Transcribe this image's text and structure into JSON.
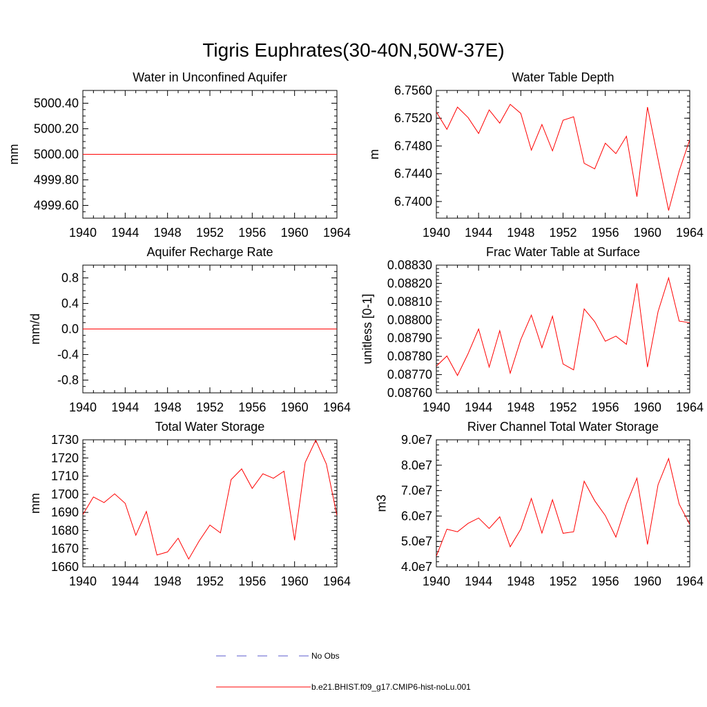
{
  "figure": {
    "title": "Tigris Euphrates(30-40N,50W-37E)"
  },
  "legend": {
    "entries": [
      {
        "label": "No Obs",
        "style": "dashed",
        "color": "#5a5acd"
      },
      {
        "label": "b.e21.BHIST.f09_g17.CMIP6-hist-noLu.001",
        "style": "solid",
        "color": "#ff0000"
      }
    ]
  },
  "chart_data": [
    {
      "type": "line",
      "title": "Water in Unconfined Aquifer",
      "xlabel": "",
      "ylabel": "mm",
      "xlim": [
        1940,
        1964
      ],
      "ylim": [
        4999.5,
        5000.5
      ],
      "xticks": [
        "1940",
        "1944",
        "1948",
        "1952",
        "1956",
        "1960",
        "1964"
      ],
      "yticks": [
        {
          "v": 5000.4,
          "label": "5000.40"
        },
        {
          "v": 5000.2,
          "label": "5000.20"
        },
        {
          "v": 5000.0,
          "label": "5000.00"
        },
        {
          "v": 4999.8,
          "label": "4999.80"
        },
        {
          "v": 4999.6,
          "label": "4999.60"
        }
      ],
      "yminor": 0.05,
      "series": [
        {
          "color": "#ff0000",
          "x": [
            1940,
            1941,
            1942,
            1943,
            1944,
            1945,
            1946,
            1947,
            1948,
            1949,
            1950,
            1951,
            1952,
            1953,
            1954,
            1955,
            1956,
            1957,
            1958,
            1959,
            1960,
            1961,
            1962,
            1963,
            1964
          ],
          "values": [
            5000,
            5000,
            5000,
            5000,
            5000,
            5000,
            5000,
            5000,
            5000,
            5000,
            5000,
            5000,
            5000,
            5000,
            5000,
            5000,
            5000,
            5000,
            5000,
            5000,
            5000,
            5000,
            5000,
            5000,
            5000
          ]
        }
      ]
    },
    {
      "type": "line",
      "title": "Water Table Depth",
      "xlabel": "",
      "ylabel": "m",
      "xlim": [
        1940,
        1964
      ],
      "ylim": [
        6.7376,
        6.756
      ],
      "xticks": [
        "1940",
        "1944",
        "1948",
        "1952",
        "1956",
        "1960",
        "1964"
      ],
      "yticks": [
        {
          "v": 6.756,
          "label": "6.7560"
        },
        {
          "v": 6.752,
          "label": "6.7520"
        },
        {
          "v": 6.748,
          "label": "6.7480"
        },
        {
          "v": 6.744,
          "label": "6.7440"
        },
        {
          "v": 6.74,
          "label": "6.7400"
        }
      ],
      "yminor": 0.0008,
      "series": [
        {
          "color": "#ff0000",
          "x": [
            1940,
            1941,
            1942,
            1943,
            1944,
            1945,
            1946,
            1947,
            1948,
            1949,
            1950,
            1951,
            1952,
            1953,
            1954,
            1955,
            1956,
            1957,
            1958,
            1959,
            1960,
            1961,
            1962,
            1963,
            1964
          ],
          "values": [
            6.7529,
            6.7504,
            6.7536,
            6.7521,
            6.7498,
            6.7532,
            6.7513,
            6.754,
            6.7527,
            6.7474,
            6.7511,
            6.7473,
            6.7517,
            6.7522,
            6.7455,
            6.7447,
            6.7484,
            6.7469,
            6.7494,
            6.7407,
            6.7536,
            6.7461,
            6.7387,
            6.7444,
            6.7489
          ]
        }
      ]
    },
    {
      "type": "line",
      "title": "Aquifer Recharge Rate",
      "xlabel": "",
      "ylabel": "mm/d",
      "xlim": [
        1940,
        1964
      ],
      "ylim": [
        -1.0,
        1.0
      ],
      "xticks": [
        "1940",
        "1944",
        "1948",
        "1952",
        "1956",
        "1960",
        "1964"
      ],
      "yticks": [
        {
          "v": 0.8,
          "label": "0.8"
        },
        {
          "v": 0.4,
          "label": "0.4"
        },
        {
          "v": 0.0,
          "label": "0.0"
        },
        {
          "v": -0.4,
          "label": "-0.4"
        },
        {
          "v": -0.8,
          "label": "-0.8"
        }
      ],
      "yminor": 0.1,
      "series": [
        {
          "color": "#ff0000",
          "x": [
            1940,
            1941,
            1942,
            1943,
            1944,
            1945,
            1946,
            1947,
            1948,
            1949,
            1950,
            1951,
            1952,
            1953,
            1954,
            1955,
            1956,
            1957,
            1958,
            1959,
            1960,
            1961,
            1962,
            1963,
            1964
          ],
          "values": [
            0,
            0,
            0,
            0,
            0,
            0,
            0,
            0,
            0,
            0,
            0,
            0,
            0,
            0,
            0,
            0,
            0,
            0,
            0,
            0,
            0,
            0,
            0,
            0,
            0
          ]
        }
      ]
    },
    {
      "type": "line",
      "title": "Frac Water Table at Surface",
      "xlabel": "",
      "ylabel": "unitless [0-1]",
      "xlim": [
        1940,
        1964
      ],
      "ylim": [
        0.0876,
        0.0883
      ],
      "xticks": [
        "1940",
        "1944",
        "1948",
        "1952",
        "1956",
        "1960",
        "1964"
      ],
      "yticks": [
        {
          "v": 0.0883,
          "label": "0.08830"
        },
        {
          "v": 0.0882,
          "label": "0.08820"
        },
        {
          "v": 0.0881,
          "label": "0.08810"
        },
        {
          "v": 0.088,
          "label": "0.08800"
        },
        {
          "v": 0.0879,
          "label": "0.08790"
        },
        {
          "v": 0.0878,
          "label": "0.08780"
        },
        {
          "v": 0.0877,
          "label": "0.08770"
        },
        {
          "v": 0.0876,
          "label": "0.08760"
        }
      ],
      "yminor": 2e-05,
      "series": [
        {
          "color": "#ff0000",
          "x": [
            1940,
            1941,
            1942,
            1943,
            1944,
            1945,
            1946,
            1947,
            1948,
            1949,
            1950,
            1951,
            1952,
            1953,
            1954,
            1955,
            1956,
            1957,
            1958,
            1959,
            1960,
            1961,
            1962,
            1963,
            1964
          ],
          "values": [
            0.087746,
            0.087802,
            0.087695,
            0.087814,
            0.08795,
            0.087741,
            0.087941,
            0.087708,
            0.087892,
            0.088026,
            0.087847,
            0.08802,
            0.087758,
            0.087726,
            0.08806,
            0.08799,
            0.087883,
            0.087911,
            0.087866,
            0.0882,
            0.087741,
            0.088045,
            0.08823,
            0.087993,
            0.087985
          ]
        }
      ]
    },
    {
      "type": "line",
      "title": "Total Water Storage",
      "xlabel": "",
      "ylabel": "mm",
      "xlim": [
        1940,
        1964
      ],
      "ylim": [
        1660,
        1730
      ],
      "xticks": [
        "1940",
        "1944",
        "1948",
        "1952",
        "1956",
        "1960",
        "1964"
      ],
      "yticks": [
        {
          "v": 1730,
          "label": "1730"
        },
        {
          "v": 1720,
          "label": "1720"
        },
        {
          "v": 1710,
          "label": "1710"
        },
        {
          "v": 1700,
          "label": "1700"
        },
        {
          "v": 1690,
          "label": "1690"
        },
        {
          "v": 1680,
          "label": "1680"
        },
        {
          "v": 1670,
          "label": "1670"
        },
        {
          "v": 1660,
          "label": "1660"
        }
      ],
      "yminor": 2,
      "series": [
        {
          "color": "#ff0000",
          "x": [
            1940,
            1941,
            1942,
            1943,
            1944,
            1945,
            1946,
            1947,
            1948,
            1949,
            1950,
            1951,
            1952,
            1953,
            1954,
            1955,
            1956,
            1957,
            1958,
            1959,
            1960,
            1961,
            1962,
            1963,
            1964
          ],
          "values": [
            1688.8,
            1698.5,
            1695.4,
            1700.2,
            1695.0,
            1677.4,
            1690.5,
            1666.5,
            1668.2,
            1675.8,
            1664.3,
            1674.4,
            1683.0,
            1678.7,
            1708.0,
            1714.0,
            1703.2,
            1711.3,
            1708.8,
            1712.7,
            1674.6,
            1717.5,
            1729.8,
            1716.6,
            1688.3
          ]
        }
      ]
    },
    {
      "type": "line",
      "title": "River Channel Total Water Storage",
      "xlabel": "",
      "ylabel": "m3",
      "xlim": [
        1940,
        1964
      ],
      "ylim": [
        40000000,
        90000000
      ],
      "xticks": [
        "1940",
        "1944",
        "1948",
        "1952",
        "1956",
        "1960",
        "1964"
      ],
      "yticks": [
        {
          "v": 90000000,
          "label": "9.0e7"
        },
        {
          "v": 80000000,
          "label": "8.0e7"
        },
        {
          "v": 70000000,
          "label": "7.0e7"
        },
        {
          "v": 60000000,
          "label": "6.0e7"
        },
        {
          "v": 50000000,
          "label": "5.0e7"
        },
        {
          "v": 40000000,
          "label": "4.0e7"
        }
      ],
      "yminor": 2000000,
      "series": [
        {
          "color": "#ff0000",
          "x": [
            1940,
            1941,
            1942,
            1943,
            1944,
            1945,
            1946,
            1947,
            1948,
            1949,
            1950,
            1951,
            1952,
            1953,
            1954,
            1955,
            1956,
            1957,
            1958,
            1959,
            1960,
            1961,
            1962,
            1963,
            1964
          ],
          "values": [
            44200000,
            54800000,
            53800000,
            57100000,
            59200000,
            55100000,
            59700000,
            47900000,
            54800000,
            66900000,
            53300000,
            66400000,
            53200000,
            53800000,
            73700000,
            66000000,
            60200000,
            51700000,
            64700000,
            74900000,
            48800000,
            72300000,
            82600000,
            64700000,
            56700000
          ]
        }
      ]
    }
  ]
}
